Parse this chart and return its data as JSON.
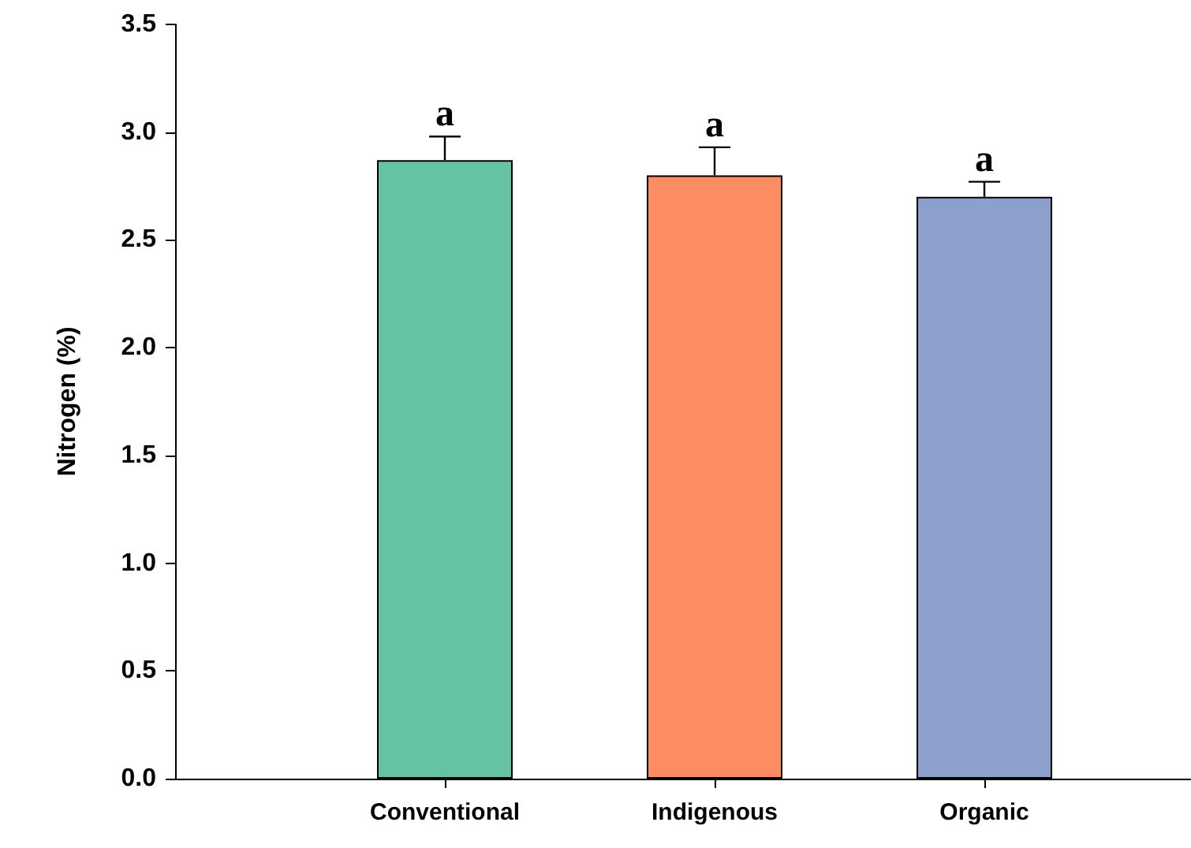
{
  "chart_data": {
    "type": "bar",
    "ylabel": "Nitrogen (%)",
    "categories": [
      "Conventional",
      "Indigenous",
      "Organic"
    ],
    "values": [
      2.87,
      2.8,
      2.7
    ],
    "colors": [
      "#66c2a5",
      "#fc8d62",
      "#8da0cb"
    ],
    "errors": [
      [
        2.87,
        2.98
      ],
      [
        2.8,
        2.93
      ],
      [
        2.7,
        2.77
      ]
    ],
    "ylim": [
      0,
      3.5
    ],
    "yticks": [
      {
        "value": 0,
        "label": "0.0"
      },
      {
        "value": 0.5,
        "label": "0.5"
      },
      {
        "value": 1,
        "label": "1.0"
      },
      {
        "value": 1.5,
        "label": "1.5"
      },
      {
        "value": 2,
        "label": "2.0"
      },
      {
        "value": 2.5,
        "label": "2.5"
      },
      {
        "value": 3,
        "label": "3.0"
      },
      {
        "value": 3.5,
        "label": "3.5"
      }
    ],
    "annotations": [
      "a",
      "a",
      "a"
    ],
    "grid": false
  }
}
